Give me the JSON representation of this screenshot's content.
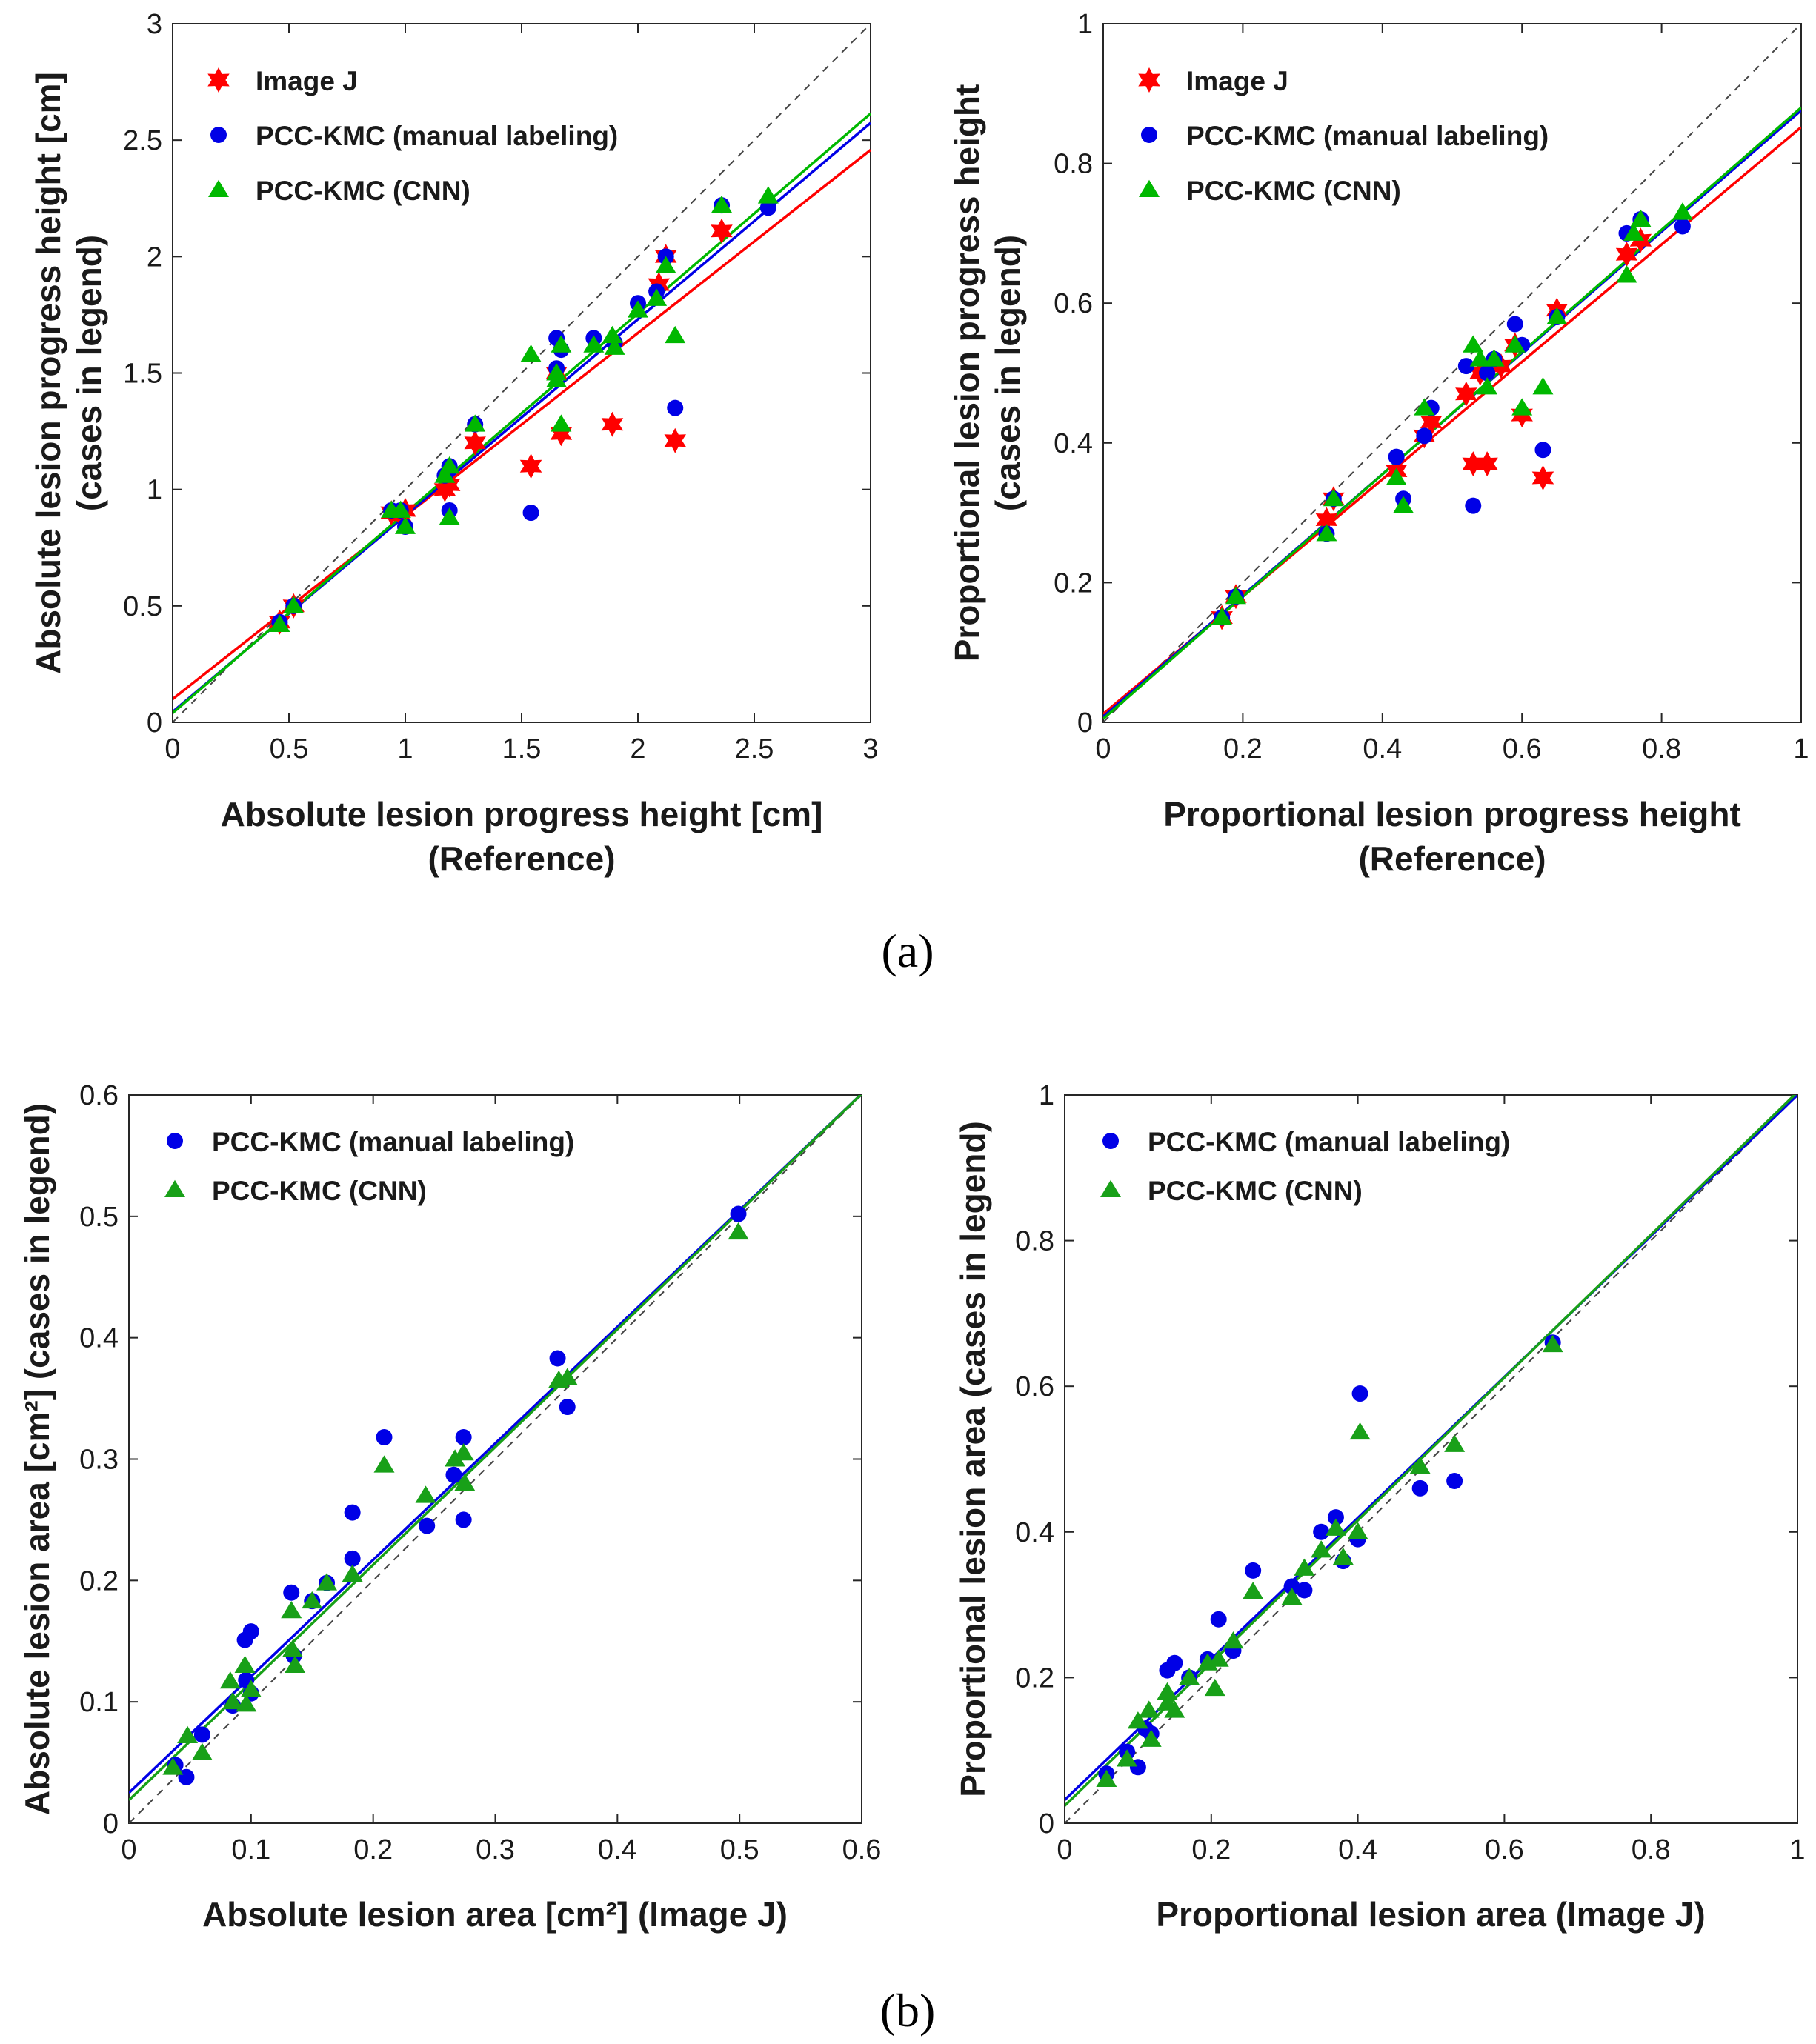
{
  "colors": {
    "image_j": "#ff0000",
    "manual": "#0000e6",
    "cnn": "#00b800",
    "cnn_dark": "#18a018",
    "identity": "#444444",
    "axis": "#262626"
  },
  "captions": {
    "a": "(a)",
    "b": "(b)"
  },
  "chart_data": [
    {
      "type": "scatter",
      "xlabel": [
        "Absolute lesion progress height [cm]",
        "(Reference)"
      ],
      "ylabel": [
        "Absolute lesion progress height [cm]",
        "(cases in legend)"
      ],
      "xlim": [
        0,
        3
      ],
      "ylim": [
        0,
        3
      ],
      "xticks": [
        0,
        0.5,
        1,
        1.5,
        2,
        2.5,
        3
      ],
      "yticks": [
        0,
        0.5,
        1,
        1.5,
        2,
        2.5,
        3
      ],
      "xtick_labels": [
        "0",
        "0.5",
        "1",
        "1.5",
        "2",
        "2.5",
        "3"
      ],
      "ytick_labels": [
        "0",
        "0.5",
        "1",
        "1.5",
        "2",
        "2.5",
        "3"
      ],
      "legend": "top-left",
      "identity_line": true,
      "series": [
        {
          "name": "Image J",
          "marker": "star",
          "color": "#ff0000",
          "points": [
            [
              0.46,
              0.43
            ],
            [
              0.52,
              0.5
            ],
            [
              0.94,
              0.9
            ],
            [
              0.98,
              0.89
            ],
            [
              1.0,
              0.91
            ],
            [
              1.17,
              1.0
            ],
            [
              1.19,
              1.02
            ],
            [
              1.3,
              1.2
            ],
            [
              1.54,
              1.1
            ],
            [
              1.65,
              1.5
            ],
            [
              1.67,
              1.24
            ],
            [
              1.89,
              1.28
            ],
            [
              2.09,
              1.88
            ],
            [
              2.12,
              2.0
            ],
            [
              2.16,
              1.21
            ],
            [
              2.36,
              2.11
            ]
          ],
          "fit": [
            0.1,
            0.786
          ]
        },
        {
          "name": "PCC-KMC (manual labeling)",
          "marker": "circle",
          "color": "#0000e6",
          "points": [
            [
              0.46,
              0.43
            ],
            [
              0.52,
              0.5
            ],
            [
              0.94,
              0.91
            ],
            [
              0.98,
              0.91
            ],
            [
              1.0,
              0.84
            ],
            [
              1.17,
              1.06
            ],
            [
              1.19,
              0.91
            ],
            [
              1.19,
              1.1
            ],
            [
              1.3,
              1.28
            ],
            [
              1.54,
              0.9
            ],
            [
              1.65,
              1.65
            ],
            [
              1.65,
              1.52
            ],
            [
              1.67,
              1.6
            ],
            [
              1.81,
              1.65
            ],
            [
              1.9,
              1.63
            ],
            [
              2.0,
              1.8
            ],
            [
              2.08,
              1.85
            ],
            [
              2.12,
              2.0
            ],
            [
              2.16,
              1.35
            ],
            [
              2.36,
              2.22
            ],
            [
              2.56,
              2.21
            ]
          ],
          "fit": [
            0.045,
            0.843
          ]
        },
        {
          "name": "PCC-KMC (CNN)",
          "marker": "triangle",
          "color": "#00b800",
          "points": [
            [
              0.46,
              0.42
            ],
            [
              0.52,
              0.5
            ],
            [
              0.94,
              0.91
            ],
            [
              0.98,
              0.91
            ],
            [
              1.0,
              0.84
            ],
            [
              1.17,
              1.06
            ],
            [
              1.19,
              1.1
            ],
            [
              1.19,
              0.88
            ],
            [
              1.3,
              1.28
            ],
            [
              1.54,
              1.58
            ],
            [
              1.65,
              1.5
            ],
            [
              1.65,
              1.47
            ],
            [
              1.67,
              1.28
            ],
            [
              1.67,
              1.62
            ],
            [
              1.81,
              1.62
            ],
            [
              1.89,
              1.66
            ],
            [
              1.9,
              1.61
            ],
            [
              2.0,
              1.77
            ],
            [
              2.08,
              1.82
            ],
            [
              2.12,
              1.96
            ],
            [
              2.16,
              1.66
            ],
            [
              2.36,
              2.22
            ],
            [
              2.56,
              2.26
            ]
          ],
          "fit": [
            0.04,
            0.858
          ]
        }
      ]
    },
    {
      "type": "scatter",
      "xlabel": [
        "Proportional lesion progress height",
        "(Reference)"
      ],
      "ylabel": [
        "Proportional lesion progress height",
        "(cases in legend)"
      ],
      "xlim": [
        0,
        1
      ],
      "ylim": [
        0,
        1
      ],
      "xticks": [
        0,
        0.2,
        0.4,
        0.6,
        0.8,
        1
      ],
      "yticks": [
        0,
        0.2,
        0.4,
        0.6,
        0.8,
        1
      ],
      "xtick_labels": [
        "0",
        "0.2",
        "0.4",
        "0.6",
        "0.8",
        "1"
      ],
      "ytick_labels": [
        "0",
        "0.2",
        "0.4",
        "0.6",
        "0.8",
        "1"
      ],
      "legend": "top-left",
      "identity_line": true,
      "series": [
        {
          "name": "Image J",
          "marker": "star",
          "color": "#ff0000",
          "points": [
            [
              0.17,
              0.15
            ],
            [
              0.19,
              0.18
            ],
            [
              0.32,
              0.29
            ],
            [
              0.33,
              0.32
            ],
            [
              0.42,
              0.36
            ],
            [
              0.46,
              0.41
            ],
            [
              0.47,
              0.43
            ],
            [
              0.52,
              0.47
            ],
            [
              0.53,
              0.37
            ],
            [
              0.54,
              0.5
            ],
            [
              0.55,
              0.37
            ],
            [
              0.57,
              0.51
            ],
            [
              0.59,
              0.54
            ],
            [
              0.6,
              0.44
            ],
            [
              0.63,
              0.35
            ],
            [
              0.65,
              0.59
            ],
            [
              0.75,
              0.67
            ],
            [
              0.77,
              0.69
            ]
          ],
          "fit": [
            0.012,
            0.84
          ]
        },
        {
          "name": "PCC-KMC (manual labeling)",
          "marker": "circle",
          "color": "#0000e6",
          "points": [
            [
              0.17,
              0.15
            ],
            [
              0.19,
              0.18
            ],
            [
              0.32,
              0.27
            ],
            [
              0.33,
              0.32
            ],
            [
              0.42,
              0.38
            ],
            [
              0.43,
              0.32
            ],
            [
              0.46,
              0.41
            ],
            [
              0.47,
              0.45
            ],
            [
              0.52,
              0.51
            ],
            [
              0.53,
              0.31
            ],
            [
              0.55,
              0.5
            ],
            [
              0.56,
              0.52
            ],
            [
              0.59,
              0.57
            ],
            [
              0.6,
              0.54
            ],
            [
              0.63,
              0.39
            ],
            [
              0.65,
              0.58
            ],
            [
              0.75,
              0.7
            ],
            [
              0.77,
              0.72
            ],
            [
              0.83,
              0.71
            ]
          ],
          "fit": [
            0.008,
            0.868
          ]
        },
        {
          "name": "PCC-KMC (CNN)",
          "marker": "triangle",
          "color": "#00b800",
          "points": [
            [
              0.17,
              0.15
            ],
            [
              0.19,
              0.18
            ],
            [
              0.32,
              0.27
            ],
            [
              0.33,
              0.32
            ],
            [
              0.42,
              0.35
            ],
            [
              0.43,
              0.31
            ],
            [
              0.46,
              0.45
            ],
            [
              0.53,
              0.54
            ],
            [
              0.54,
              0.52
            ],
            [
              0.55,
              0.48
            ],
            [
              0.56,
              0.52
            ],
            [
              0.59,
              0.54
            ],
            [
              0.6,
              0.45
            ],
            [
              0.63,
              0.48
            ],
            [
              0.65,
              0.58
            ],
            [
              0.75,
              0.64
            ],
            [
              0.76,
              0.7
            ],
            [
              0.77,
              0.72
            ],
            [
              0.83,
              0.73
            ]
          ],
          "fit": [
            0.005,
            0.875
          ]
        }
      ]
    },
    {
      "type": "scatter",
      "xlabel": [
        "Absolute lesion area [cm²] (Image J)"
      ],
      "ylabel": [
        "Absolute lesion area [cm²] (cases in legend)"
      ],
      "xlim": [
        0,
        0.6
      ],
      "ylim": [
        0,
        0.6
      ],
      "xticks": [
        0,
        0.1,
        0.2,
        0.3,
        0.4,
        0.5,
        0.6
      ],
      "yticks": [
        0,
        0.1,
        0.2,
        0.3,
        0.4,
        0.5,
        0.6
      ],
      "xtick_labels": [
        "0",
        "0.1",
        "0.2",
        "0.3",
        "0.4",
        "0.5",
        "0.6"
      ],
      "ytick_labels": [
        "0",
        "0.1",
        "0.2",
        "0.3",
        "0.4",
        "0.5",
        "0.6"
      ],
      "legend": "top-left",
      "identity_line": true,
      "series": [
        {
          "name": "PCC-KMC (manual labeling)",
          "marker": "circle",
          "color": "#0000e6",
          "points": [
            [
              0.038,
              0.048
            ],
            [
              0.047,
              0.038
            ],
            [
              0.06,
              0.073
            ],
            [
              0.085,
              0.097
            ],
            [
              0.095,
              0.151
            ],
            [
              0.096,
              0.118
            ],
            [
              0.1,
              0.158
            ],
            [
              0.1,
              0.107
            ],
            [
              0.133,
              0.19
            ],
            [
              0.135,
              0.138
            ],
            [
              0.15,
              0.183
            ],
            [
              0.162,
              0.198
            ],
            [
              0.183,
              0.256
            ],
            [
              0.183,
              0.218
            ],
            [
              0.209,
              0.318
            ],
            [
              0.244,
              0.245
            ],
            [
              0.266,
              0.287
            ],
            [
              0.274,
              0.318
            ],
            [
              0.274,
              0.25
            ],
            [
              0.351,
              0.383
            ],
            [
              0.359,
              0.343
            ],
            [
              0.499,
              0.502
            ]
          ],
          "fit": [
            0.025,
            0.96
          ]
        },
        {
          "name": "PCC-KMC (CNN)",
          "marker": "triangle",
          "color": "#18a018",
          "points": [
            [
              0.036,
              0.046
            ],
            [
              0.048,
              0.072
            ],
            [
              0.06,
              0.058
            ],
            [
              0.083,
              0.117
            ],
            [
              0.085,
              0.1
            ],
            [
              0.095,
              0.13
            ],
            [
              0.096,
              0.098
            ],
            [
              0.1,
              0.11
            ],
            [
              0.133,
              0.175
            ],
            [
              0.134,
              0.143
            ],
            [
              0.136,
              0.13
            ],
            [
              0.15,
              0.183
            ],
            [
              0.162,
              0.198
            ],
            [
              0.183,
              0.205
            ],
            [
              0.209,
              0.295
            ],
            [
              0.243,
              0.27
            ],
            [
              0.267,
              0.3
            ],
            [
              0.274,
              0.305
            ],
            [
              0.275,
              0.28
            ],
            [
              0.352,
              0.365
            ],
            [
              0.359,
              0.367
            ],
            [
              0.499,
              0.487
            ]
          ],
          "fit": [
            0.019,
            0.97
          ]
        }
      ]
    },
    {
      "type": "scatter",
      "xlabel": [
        "Proportional lesion area (Image J)"
      ],
      "ylabel": [
        "Proportional lesion area (cases in legend)"
      ],
      "xlim": [
        0,
        1
      ],
      "ylim": [
        0,
        1
      ],
      "xticks": [
        0,
        0.2,
        0.4,
        0.6,
        0.8,
        1
      ],
      "yticks": [
        0,
        0.2,
        0.4,
        0.6,
        0.8,
        1
      ],
      "xtick_labels": [
        "0",
        "0.2",
        "0.4",
        "0.6",
        "0.8",
        "1"
      ],
      "ytick_labels": [
        "0",
        "0.2",
        "0.4",
        "0.6",
        "0.8",
        "1"
      ],
      "legend": "top-left",
      "identity_line": true,
      "series": [
        {
          "name": "PCC-KMC (manual labeling)",
          "marker": "circle",
          "color": "#0000e6",
          "points": [
            [
              0.057,
              0.068
            ],
            [
              0.085,
              0.098
            ],
            [
              0.1,
              0.077
            ],
            [
              0.11,
              0.13
            ],
            [
              0.118,
              0.123
            ],
            [
              0.14,
              0.21
            ],
            [
              0.15,
              0.22
            ],
            [
              0.17,
              0.2
            ],
            [
              0.195,
              0.225
            ],
            [
              0.21,
              0.28
            ],
            [
              0.23,
              0.237
            ],
            [
              0.257,
              0.347
            ],
            [
              0.31,
              0.325
            ],
            [
              0.327,
              0.32
            ],
            [
              0.35,
              0.4
            ],
            [
              0.37,
              0.42
            ],
            [
              0.38,
              0.36
            ],
            [
              0.4,
              0.39
            ],
            [
              0.403,
              0.59
            ],
            [
              0.485,
              0.46
            ],
            [
              0.532,
              0.47
            ],
            [
              0.666,
              0.66
            ]
          ],
          "fit": [
            0.032,
            0.968
          ]
        },
        {
          "name": "PCC-KMC (CNN)",
          "marker": "triangle",
          "color": "#18a018",
          "points": [
            [
              0.057,
              0.06
            ],
            [
              0.085,
              0.088
            ],
            [
              0.1,
              0.14
            ],
            [
              0.115,
              0.155
            ],
            [
              0.118,
              0.115
            ],
            [
              0.14,
              0.18
            ],
            [
              0.14,
              0.165
            ],
            [
              0.15,
              0.155
            ],
            [
              0.17,
              0.2
            ],
            [
              0.195,
              0.22
            ],
            [
              0.205,
              0.185
            ],
            [
              0.21,
              0.225
            ],
            [
              0.23,
              0.25
            ],
            [
              0.257,
              0.318
            ],
            [
              0.31,
              0.31
            ],
            [
              0.327,
              0.35
            ],
            [
              0.35,
              0.375
            ],
            [
              0.37,
              0.405
            ],
            [
              0.38,
              0.365
            ],
            [
              0.4,
              0.4
            ],
            [
              0.403,
              0.537
            ],
            [
              0.485,
              0.49
            ],
            [
              0.532,
              0.52
            ],
            [
              0.666,
              0.657
            ]
          ],
          "fit": [
            0.024,
            0.98
          ]
        }
      ]
    }
  ]
}
